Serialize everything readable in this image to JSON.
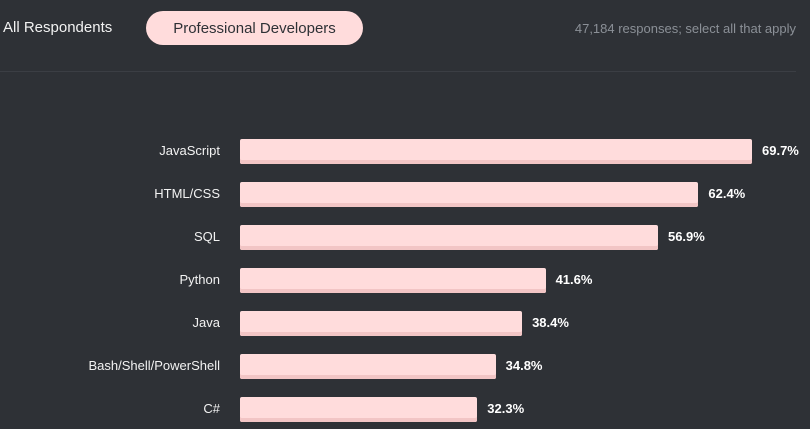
{
  "tabs": [
    {
      "label": "All Respondents",
      "active": false
    },
    {
      "label": "Professional Developers",
      "active": true
    }
  ],
  "meta": "47,184 responses; select all that apply",
  "colors": {
    "bar": "#ffdcdc",
    "background": "#2e3136"
  },
  "chart_data": {
    "type": "bar",
    "orientation": "horizontal",
    "categories": [
      "JavaScript",
      "HTML/CSS",
      "SQL",
      "Python",
      "Java",
      "Bash/Shell/PowerShell",
      "C#"
    ],
    "values": [
      69.7,
      62.4,
      56.9,
      41.6,
      38.4,
      34.8,
      32.3
    ],
    "labels": [
      "69.7%",
      "62.4%",
      "56.9%",
      "41.6%",
      "38.4%",
      "34.8%",
      "32.3%"
    ],
    "unit": "%"
  }
}
